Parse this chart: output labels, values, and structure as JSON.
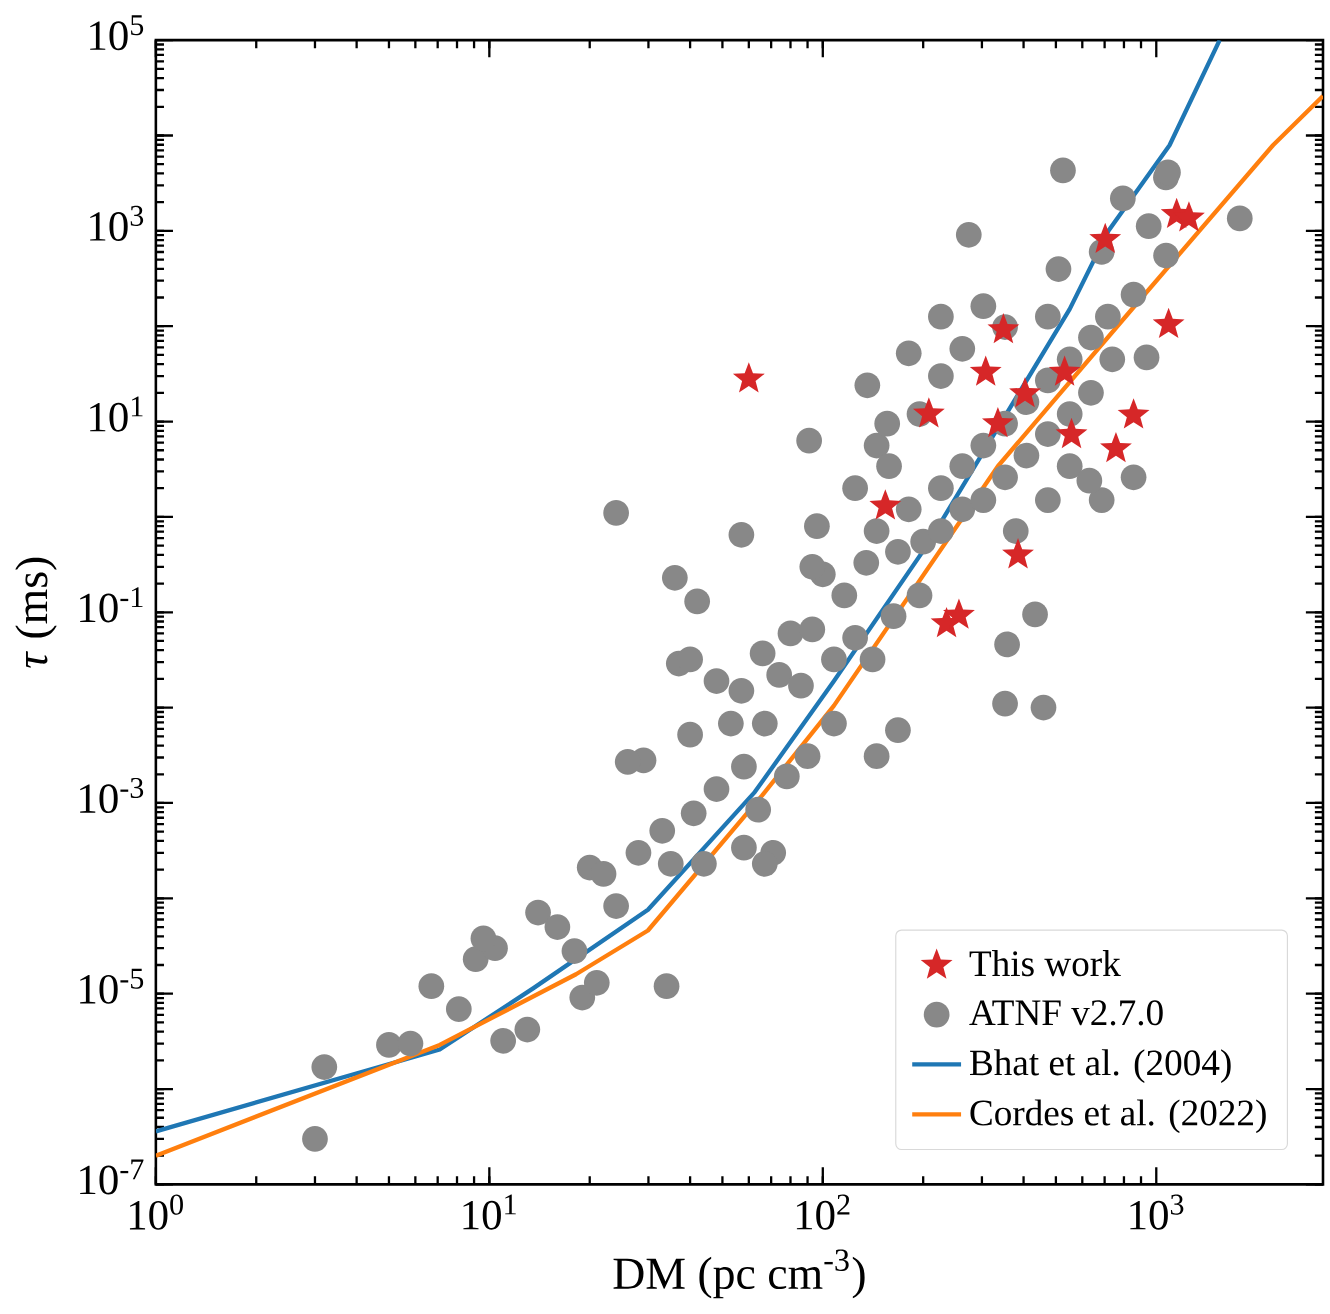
{
  "chart_data": {
    "type": "scatter",
    "xlabel": "DM (pc cm$^{-3}$)",
    "ylabel": "*τ* (ms)",
    "log": "xy",
    "legend": "bottom right",
    "xlim": [
      1,
      3162
    ],
    "ylim": [
      1e-07,
      100000
    ],
    "xticks": [
      {
        "value": 1,
        "label": "10$^{0}$"
      },
      {
        "value": 10,
        "label": "10$^{1}$"
      },
      {
        "value": 100,
        "label": "10$^{2}$"
      },
      {
        "value": 1000,
        "label": "10$^{3}$"
      }
    ],
    "yticks": [
      {
        "value": 1e-07,
        "label": "10$^{-7}$"
      },
      {
        "value": 1e-06,
        "label": null
      },
      {
        "value": 1e-05,
        "label": "10$^{-5}$"
      },
      {
        "value": 0.0001,
        "label": null
      },
      {
        "value": 0.001,
        "label": "10$^{-3}$"
      },
      {
        "value": 0.01,
        "label": null
      },
      {
        "value": 0.1,
        "label": "10$^{-1}$"
      },
      {
        "value": 1,
        "label": null
      },
      {
        "value": 10,
        "label": "10$^{1}$"
      },
      {
        "value": 100,
        "label": null
      },
      {
        "value": 1000,
        "label": "10$^{3}$"
      },
      {
        "value": 10000,
        "label": null
      },
      {
        "value": 100000,
        "label": "10$^{5}$"
      }
    ],
    "series": [
      {
        "name": "This work",
        "marker": "star",
        "color": "#d62728",
        "x": [
          60,
          348,
          308,
          531,
          404,
          208,
          335,
          557,
          855,
          757,
          1089,
          703,
          1151,
          1253,
          154,
          385,
          235,
          256
        ],
        "values": [
          28,
          92,
          33,
          33,
          19.6,
          12,
          9.5,
          7.3,
          11.7,
          5.2,
          104,
          813,
          1486,
          1365,
          1.3,
          0.4,
          0.076,
          0.093
        ]
      },
      {
        "name": "ATNF v2.7.0",
        "marker": "circle",
        "color": "#888888",
        "x": [
          3.0,
          3.2,
          5.0,
          5.8,
          6.7,
          8.1,
          9.1,
          10.4,
          11,
          13,
          9.6,
          14,
          16,
          19,
          21,
          18,
          20,
          22,
          24,
          28,
          33,
          29,
          40,
          34,
          41,
          35,
          44,
          48,
          58,
          71,
          67,
          58,
          53,
          67,
          57,
          66,
          37,
          36,
          42,
          57,
          24,
          91,
          96,
          74,
          86,
          80,
          93,
          108,
          125,
          116,
          100,
          135,
          145,
          168,
          181,
          200,
          226,
          262,
          303,
          352,
          408,
          473,
          550,
          637,
          716,
          855,
          226,
          262,
          303,
          352,
          408,
          473,
          550,
          637,
          738,
          473,
          550,
          379,
          195,
          163,
          141,
          108,
          90,
          78,
          64,
          48,
          40,
          26,
          125,
          145,
          156,
          195,
          226,
          262,
          303,
          352,
          473,
          509,
          686,
          794,
          1069,
          525,
          1780,
          274,
          226,
          181,
          136,
          158,
          855,
          686,
          352,
          459,
          93,
          1084,
          949,
          1070,
          935,
          630,
          433,
          357,
          168,
          145
        ],
        "values": [
          3e-07,
          1.7e-06,
          2.9e-06,
          3e-06,
          1.2e-05,
          6.9e-06,
          2.3e-05,
          3e-05,
          3.2e-06,
          4.2e-06,
          3.8e-05,
          7.1e-05,
          5e-05,
          9.1e-06,
          1.3e-05,
          2.8e-05,
          0.00021,
          0.00018,
          8.3e-05,
          0.0003,
          0.00051,
          0.0028,
          0.0052,
          1.2e-05,
          0.00078,
          0.00023,
          0.00023,
          0.0014,
          0.00034,
          0.0003,
          0.00023,
          0.0024,
          0.0068,
          0.0068,
          0.015,
          0.037,
          0.029,
          0.23,
          0.13,
          0.65,
          1.1,
          6.3,
          0.8,
          0.022,
          0.017,
          0.06,
          0.066,
          0.032,
          0.054,
          0.15,
          0.25,
          0.33,
          0.71,
          0.43,
          1.2,
          0.55,
          2.0,
          3.4,
          5.6,
          9.5,
          16,
          27,
          45,
          76,
          126,
          214,
          0.71,
          1.2,
          1.5,
          2.6,
          4.4,
          7.4,
          12,
          20,
          45,
          1.5,
          3.4,
          0.71,
          0.15,
          0.091,
          0.032,
          0.0068,
          0.0031,
          0.0019,
          0.00085,
          0.019,
          0.032,
          0.0027,
          2.0,
          5.6,
          9.5,
          12,
          30,
          58,
          162,
          98,
          126,
          398,
          603,
          2190,
          3630,
          4300,
          1350,
          910,
          126,
          52,
          24,
          3.4,
          2.6,
          1.5,
          0.011,
          0.01,
          0.3,
          4100,
          1120,
          550,
          47,
          2.4,
          0.095,
          0.046,
          0.0058,
          0.0031
        ]
      },
      {
        "name": "Bhat et al. (2004)",
        "type": "line",
        "marker": "none",
        "color": "#1f77b4",
        "x": [
          1,
          7.1,
          13.6,
          29.9,
          62.5,
          108,
          205,
          550,
          719,
          1096,
          1549
        ],
        "values": [
          3.6e-07,
          2.6e-06,
          1.15e-05,
          7.6e-05,
          0.0013,
          0.019,
          0.5,
          151,
          1000,
          7900,
          100000
        ]
      },
      {
        "name": "Cordes et al. (2022)",
        "type": "line",
        "marker": "none",
        "color": "#ff7f0e",
        "x": [
          1,
          7.1,
          18.2,
          29.9,
          65.8,
          108,
          335,
          855,
          2239,
          3162
        ],
        "values": [
          2e-07,
          2.9e-06,
          1.6e-05,
          4.6e-05,
          0.0012,
          0.0105,
          3.4,
          158,
          7900,
          26000
        ]
      }
    ]
  }
}
